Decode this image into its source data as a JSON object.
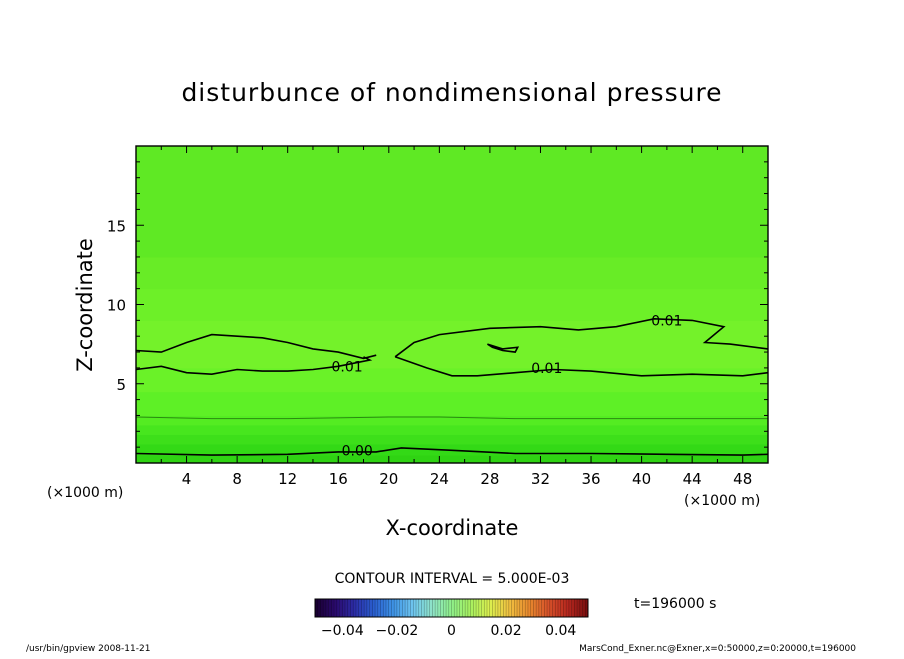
{
  "chart_data": {
    "type": "contour",
    "title": "disturbunce of nondimensional pressure",
    "xlabel": "X-coordinate",
    "ylabel": "Z-coordinate",
    "x_unit_left": "(×1000 m)",
    "x_unit_right": "(×1000 m)",
    "xlim": [
      0,
      50
    ],
    "ylim": [
      0,
      20
    ],
    "xticks": [
      4,
      8,
      12,
      16,
      20,
      24,
      28,
      32,
      36,
      40,
      44,
      48
    ],
    "yticks": [
      5,
      10,
      15
    ],
    "contour_interval_text": "CONTOUR INTERVAL = 5.000E-03",
    "time_text": "t=196000 s",
    "colorbar_ticks": [
      "−0.04",
      "−0.02",
      "0",
      "0.02",
      "0.04"
    ],
    "colorbar_range": [
      -0.05,
      0.05
    ],
    "contour_labels": [
      {
        "text": "0.00",
        "x": 17.5,
        "y": 0.8
      },
      {
        "text": "0.01",
        "x": 16.7,
        "y": 6.1
      },
      {
        "text": "0.01",
        "x": 32.5,
        "y": 6.0
      },
      {
        "text": "0.01",
        "x": 42.0,
        "y": 9.0
      }
    ],
    "contours": [
      {
        "level": 0.0,
        "points": [
          [
            0,
            0.6
          ],
          [
            6,
            0.5
          ],
          [
            12,
            0.55
          ],
          [
            16,
            0.7
          ],
          [
            19,
            0.7
          ],
          [
            21,
            0.95
          ],
          [
            25,
            0.8
          ],
          [
            30,
            0.6
          ],
          [
            36,
            0.6
          ],
          [
            42,
            0.55
          ],
          [
            48,
            0.5
          ],
          [
            50,
            0.55
          ]
        ]
      },
      {
        "level": 0.01,
        "points": [
          [
            0,
            5.9
          ],
          [
            2,
            6.1
          ],
          [
            4,
            5.7
          ],
          [
            6,
            5.6
          ],
          [
            8,
            5.9
          ],
          [
            10,
            5.8
          ],
          [
            12,
            5.8
          ],
          [
            14,
            5.9
          ],
          [
            16,
            6.1
          ],
          [
            18.5,
            6.5
          ],
          [
            18,
            6.7
          ]
        ]
      },
      {
        "level": 0.01,
        "points": [
          [
            0,
            7.1
          ],
          [
            2,
            7.0
          ],
          [
            4,
            7.6
          ],
          [
            6,
            8.1
          ],
          [
            10,
            7.9
          ],
          [
            12,
            7.6
          ],
          [
            14,
            7.2
          ],
          [
            16,
            7.0
          ],
          [
            18,
            6.6
          ],
          [
            19,
            6.8
          ]
        ]
      },
      {
        "level": 0.01,
        "points": [
          [
            20.5,
            6.7
          ],
          [
            23,
            6.0
          ],
          [
            25,
            5.5
          ],
          [
            27,
            5.5
          ],
          [
            30,
            5.7
          ],
          [
            33,
            5.9
          ],
          [
            36,
            5.8
          ],
          [
            40,
            5.5
          ],
          [
            44,
            5.6
          ],
          [
            48,
            5.5
          ],
          [
            50,
            5.7
          ]
        ]
      },
      {
        "level": 0.01,
        "points": [
          [
            20.5,
            6.7
          ],
          [
            22,
            7.6
          ],
          [
            24,
            8.1
          ],
          [
            28,
            8.5
          ],
          [
            32,
            8.6
          ],
          [
            35,
            8.4
          ],
          [
            38,
            8.6
          ],
          [
            41,
            9.1
          ],
          [
            44,
            9.0
          ],
          [
            46.5,
            8.6
          ],
          [
            45,
            7.6
          ],
          [
            47,
            7.5
          ],
          [
            50,
            7.2
          ]
        ]
      },
      {
        "level": 0.01,
        "points": [
          [
            27.8,
            7.5
          ],
          [
            29,
            7.2
          ],
          [
            30.2,
            7.3
          ],
          [
            30,
            7.0
          ],
          [
            29,
            7.1
          ],
          [
            28.2,
            7.3
          ],
          [
            27.8,
            7.5
          ]
        ]
      },
      {
        "level": 0.005,
        "points": [
          [
            0,
            2.9
          ],
          [
            6,
            2.8
          ],
          [
            12,
            2.8
          ],
          [
            20,
            2.9
          ],
          [
            24,
            2.9
          ],
          [
            30,
            2.8
          ],
          [
            40,
            2.8
          ],
          [
            50,
            2.8
          ]
        ]
      }
    ],
    "fill_bands": [
      {
        "y0": 0.0,
        "y1": 0.5,
        "color": "#2fd313"
      },
      {
        "y0": 0.5,
        "y1": 1.2,
        "color": "#33d916"
      },
      {
        "y0": 1.2,
        "y1": 1.8,
        "color": "#3ddf1a"
      },
      {
        "y0": 1.8,
        "y1": 2.4,
        "color": "#47e61e"
      },
      {
        "y0": 2.4,
        "y1": 3.0,
        "color": "#54ec22"
      },
      {
        "y0": 3.0,
        "y1": 4.5,
        "color": "#5ef026"
      },
      {
        "y0": 4.5,
        "y1": 6.0,
        "color": "#6af228"
      },
      {
        "y0": 6.0,
        "y1": 9.0,
        "color": "#74f22a"
      },
      {
        "y0": 9.0,
        "y1": 11.0,
        "color": "#6df028"
      },
      {
        "y0": 11.0,
        "y1": 13.0,
        "color": "#68ec26"
      },
      {
        "y0": 13.0,
        "y1": 20.0,
        "color": "#5fe924"
      }
    ],
    "colorbar_colors": [
      "#1a0033",
      "#2a0a6e",
      "#2c2ea8",
      "#2a5fd0",
      "#3f94e6",
      "#6fc6f0",
      "#8fe3c8",
      "#8ff08a",
      "#a8f060",
      "#dcef4f",
      "#f0c040",
      "#e88a2e",
      "#d8532a",
      "#b8281f",
      "#7a0f0f"
    ]
  },
  "footer": {
    "left": "/usr/bin/gpview  2008-11-21",
    "right": "MarsCond_Exner.nc@Exner,x=0:50000,z=0:20000,t=196000"
  }
}
